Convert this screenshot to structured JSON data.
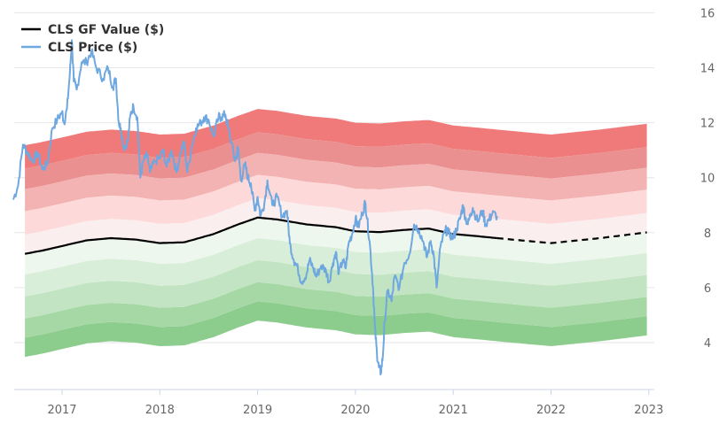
{
  "chart_data": {
    "type": "line",
    "title": "",
    "xlabel": "",
    "ylabel": "",
    "xlim": [
      2016.5,
      2023.0
    ],
    "ylim": [
      2.0,
      16.0
    ],
    "x_tick_labels": [
      "2017",
      "2018",
      "2019",
      "2020",
      "2021",
      "2022",
      "2023"
    ],
    "x_ticks": [
      2017,
      2018,
      2019,
      2020,
      2021,
      2022,
      2023
    ],
    "y_tick_labels": [
      "4",
      "6",
      "8",
      "10",
      "12",
      "14",
      "16"
    ],
    "y_ticks": [
      4,
      6,
      8,
      10,
      12,
      14,
      16
    ],
    "grid": "horizontal",
    "legend_position": "top-left",
    "legend": [
      {
        "label": "CLS GF Value ($)",
        "color": "#000000"
      },
      {
        "label": "CLS Price ($)",
        "color": "#6fa8e0"
      }
    ],
    "gf_value": {
      "name": "CLS GF Value ($)",
      "color": "#000000",
      "solid_end_x": 2021.45,
      "points": [
        [
          2016.5,
          7.15
        ],
        [
          2016.8,
          7.35
        ],
        [
          2017.25,
          7.72
        ],
        [
          2017.5,
          7.8
        ],
        [
          2017.75,
          7.75
        ],
        [
          2018.0,
          7.62
        ],
        [
          2018.25,
          7.65
        ],
        [
          2018.55,
          7.95
        ],
        [
          2018.8,
          8.3
        ],
        [
          2019.0,
          8.55
        ],
        [
          2019.2,
          8.48
        ],
        [
          2019.5,
          8.3
        ],
        [
          2019.8,
          8.2
        ],
        [
          2020.0,
          8.05
        ],
        [
          2020.25,
          8.02
        ],
        [
          2020.5,
          8.1
        ],
        [
          2020.75,
          8.15
        ],
        [
          2021.0,
          7.95
        ],
        [
          2021.25,
          7.87
        ],
        [
          2021.45,
          7.8
        ],
        [
          2021.75,
          7.7
        ],
        [
          2022.0,
          7.62
        ],
        [
          2022.5,
          7.8
        ],
        [
          2023.0,
          8.02
        ]
      ]
    },
    "price": {
      "name": "CLS Price ($)",
      "color": "#6fa8e0",
      "points": [
        [
          2016.5,
          9.2
        ],
        [
          2016.55,
          9.7
        ],
        [
          2016.6,
          11.2
        ],
        [
          2016.65,
          10.9
        ],
        [
          2016.7,
          10.6
        ],
        [
          2016.75,
          10.9
        ],
        [
          2016.8,
          10.3
        ],
        [
          2016.85,
          10.5
        ],
        [
          2016.9,
          11.8
        ],
        [
          2016.95,
          12.1
        ],
        [
          2017.0,
          12.4
        ],
        [
          2017.02,
          12.0
        ],
        [
          2017.05,
          12.5
        ],
        [
          2017.08,
          13.8
        ],
        [
          2017.1,
          15.0
        ],
        [
          2017.12,
          13.5
        ],
        [
          2017.15,
          13.2
        ],
        [
          2017.2,
          14.2
        ],
        [
          2017.25,
          14.2
        ],
        [
          2017.3,
          14.6
        ],
        [
          2017.35,
          14.0
        ],
        [
          2017.42,
          13.6
        ],
        [
          2017.47,
          14.0
        ],
        [
          2017.52,
          13.3
        ],
        [
          2017.55,
          13.6
        ],
        [
          2017.58,
          12.0
        ],
        [
          2017.6,
          11.8
        ],
        [
          2017.63,
          11.1
        ],
        [
          2017.67,
          11.3
        ],
        [
          2017.7,
          12.3
        ],
        [
          2017.73,
          12.6
        ],
        [
          2017.77,
          12.2
        ],
        [
          2017.8,
          10.0
        ],
        [
          2017.83,
          10.6
        ],
        [
          2017.87,
          10.8
        ],
        [
          2017.9,
          10.2
        ],
        [
          2017.95,
          10.6
        ],
        [
          2018.0,
          10.7
        ],
        [
          2018.03,
          11.0
        ],
        [
          2018.07,
          10.4
        ],
        [
          2018.12,
          11.0
        ],
        [
          2018.17,
          10.2
        ],
        [
          2018.21,
          10.9
        ],
        [
          2018.25,
          11.3
        ],
        [
          2018.28,
          10.2
        ],
        [
          2018.33,
          11.2
        ],
        [
          2018.37,
          11.8
        ],
        [
          2018.42,
          12.0
        ],
        [
          2018.45,
          12.2
        ],
        [
          2018.5,
          12.1
        ],
        [
          2018.55,
          11.5
        ],
        [
          2018.6,
          12.2
        ],
        [
          2018.63,
          12.2
        ],
        [
          2018.67,
          12.3
        ],
        [
          2018.7,
          11.8
        ],
        [
          2018.73,
          11.3
        ],
        [
          2018.77,
          10.6
        ],
        [
          2018.8,
          11.1
        ],
        [
          2018.83,
          9.9
        ],
        [
          2018.87,
          10.5
        ],
        [
          2018.9,
          10.0
        ],
        [
          2018.93,
          9.8
        ],
        [
          2018.97,
          8.8
        ],
        [
          2019.0,
          9.3
        ],
        [
          2019.03,
          8.6
        ],
        [
          2019.07,
          9.1
        ],
        [
          2019.1,
          9.9
        ],
        [
          2019.15,
          9.0
        ],
        [
          2019.2,
          9.3
        ],
        [
          2019.25,
          8.6
        ],
        [
          2019.3,
          8.8
        ],
        [
          2019.33,
          7.6
        ],
        [
          2019.37,
          7.0
        ],
        [
          2019.4,
          6.8
        ],
        [
          2019.45,
          6.2
        ],
        [
          2019.5,
          6.5
        ],
        [
          2019.53,
          7.0
        ],
        [
          2019.57,
          6.7
        ],
        [
          2019.6,
          6.4
        ],
        [
          2019.65,
          6.8
        ],
        [
          2019.7,
          6.6
        ],
        [
          2019.73,
          6.2
        ],
        [
          2019.77,
          6.9
        ],
        [
          2019.8,
          7.3
        ],
        [
          2019.83,
          6.5
        ],
        [
          2019.87,
          7.0
        ],
        [
          2019.9,
          6.7
        ],
        [
          2019.93,
          7.6
        ],
        [
          2019.97,
          8.0
        ],
        [
          2020.0,
          8.5
        ],
        [
          2020.03,
          8.2
        ],
        [
          2020.07,
          8.7
        ],
        [
          2020.1,
          9.1
        ],
        [
          2020.12,
          8.5
        ],
        [
          2020.15,
          7.5
        ],
        [
          2020.18,
          6.0
        ],
        [
          2020.2,
          4.5
        ],
        [
          2020.22,
          3.6
        ],
        [
          2020.24,
          3.1
        ],
        [
          2020.26,
          2.9
        ],
        [
          2020.28,
          3.5
        ],
        [
          2020.3,
          4.8
        ],
        [
          2020.33,
          5.9
        ],
        [
          2020.37,
          5.5
        ],
        [
          2020.4,
          6.4
        ],
        [
          2020.45,
          6.0
        ],
        [
          2020.5,
          6.9
        ],
        [
          2020.55,
          7.2
        ],
        [
          2020.6,
          8.3
        ],
        [
          2020.65,
          8.1
        ],
        [
          2020.7,
          7.6
        ],
        [
          2020.73,
          7.1
        ],
        [
          2020.77,
          7.7
        ],
        [
          2020.8,
          7.2
        ],
        [
          2020.83,
          6.0
        ],
        [
          2020.87,
          7.5
        ],
        [
          2020.92,
          8.1
        ],
        [
          2020.95,
          8.0
        ],
        [
          2021.0,
          7.8
        ],
        [
          2021.03,
          8.1
        ],
        [
          2021.07,
          8.5
        ],
        [
          2021.1,
          9.0
        ],
        [
          2021.12,
          8.6
        ],
        [
          2021.15,
          8.3
        ],
        [
          2021.18,
          8.7
        ],
        [
          2021.2,
          8.9
        ],
        [
          2021.25,
          8.4
        ],
        [
          2021.3,
          8.8
        ],
        [
          2021.33,
          8.3
        ],
        [
          2021.37,
          8.5
        ],
        [
          2021.4,
          8.7
        ],
        [
          2021.45,
          8.6
        ]
      ]
    },
    "bands": {
      "upper_colors": [
        "#fbeeee",
        "#fdd9d9",
        "#f4b3b3",
        "#ea9090",
        "#f07a7a"
      ],
      "lower_colors": [
        "#eef7ee",
        "#d9eed9",
        "#c2e4c2",
        "#a6d8a6",
        "#8ccc8c"
      ],
      "upper_offsets": [
        0.7,
        1.55,
        2.35,
        3.1,
        3.95
      ],
      "lower_offsets": [
        -0.75,
        -1.55,
        -2.35,
        -3.05,
        -3.75
      ]
    }
  }
}
